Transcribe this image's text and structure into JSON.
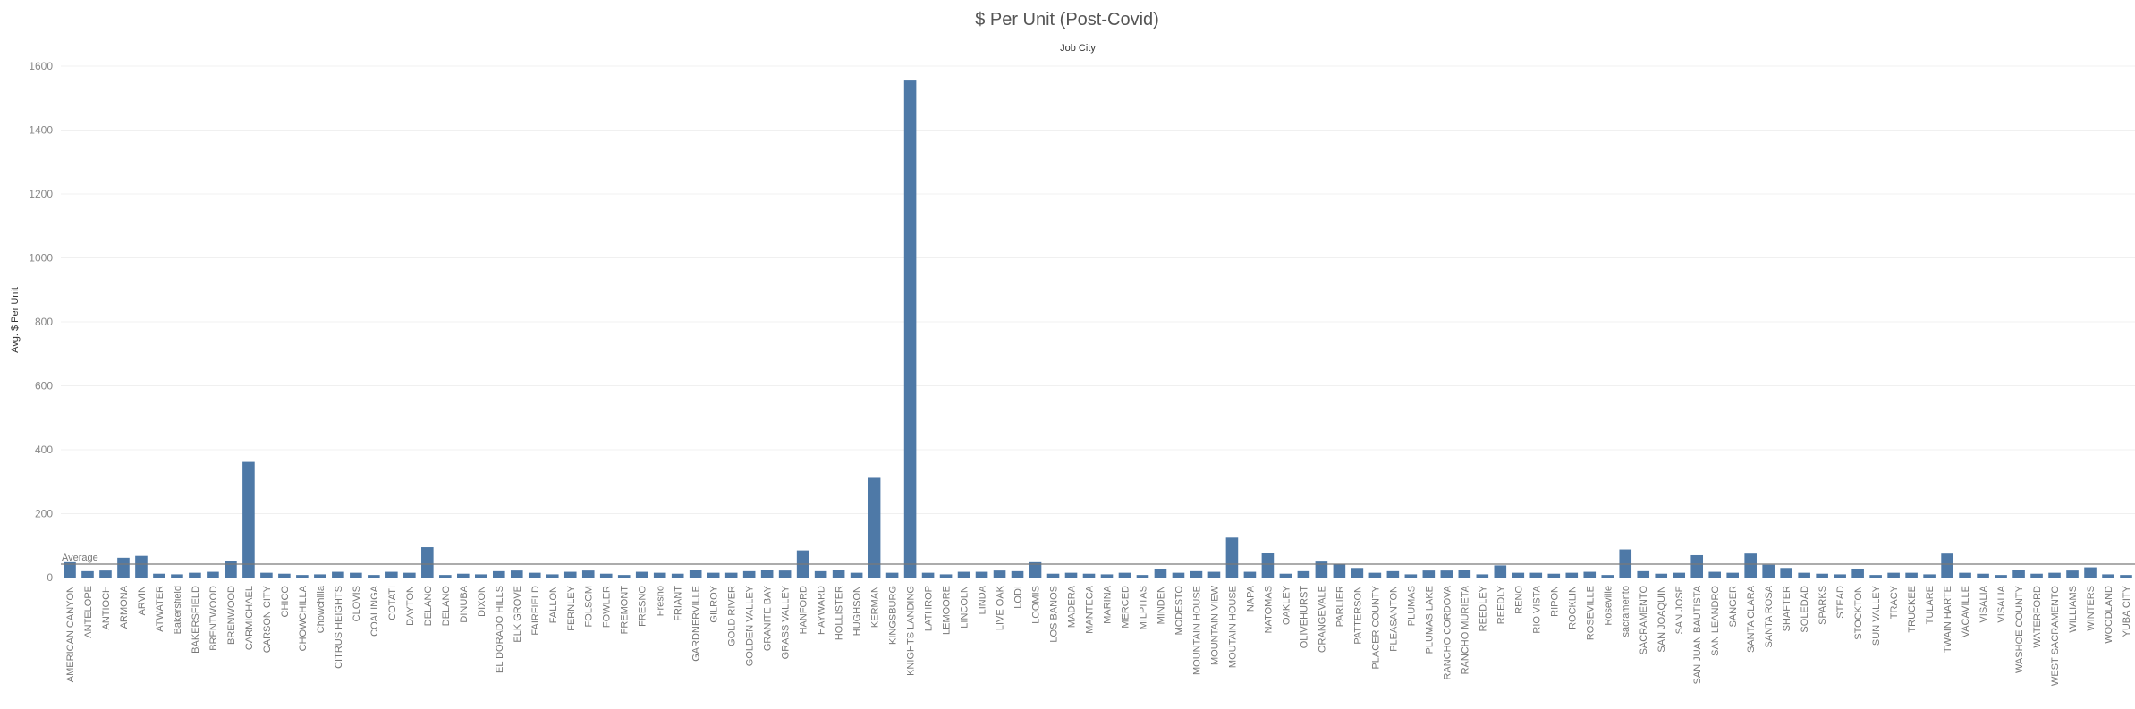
{
  "chart_data": {
    "type": "bar",
    "title": "$ Per Unit (Post-Covid)",
    "column_header": "Job City",
    "ylabel": "Avg. $ Per Unit",
    "ylim": [
      0,
      1600
    ],
    "yticks": [
      0,
      200,
      400,
      600,
      800,
      1000,
      1200,
      1400,
      1600
    ],
    "reference_line": {
      "label": "Average",
      "value": 42
    },
    "grid": true,
    "bar_color": "#4e79a7",
    "categories": [
      "AMERICAN CANYON",
      "ANTELOPE",
      "ANTIOCH",
      "ARMONA",
      "ARVIN",
      "ATWATER",
      "Bakersfield",
      "BAKERSFIELD",
      "BRENTWOOD",
      "BRENWOOD",
      "CARMICHAEL",
      "CARSON CITY",
      "CHICO",
      "CHOWCHILLA",
      "Chowchilla",
      "CITRUS HEIGHTS",
      "CLOVIS",
      "COALINGA",
      "COTATI",
      "DAYTON",
      "DELANO",
      "DELANO",
      "DINUBA",
      "DIXON",
      "EL DORADO HILLS",
      "ELK GROVE",
      "FAIRFIELD",
      "FALLON",
      "FERNLEY",
      "FOLSOM",
      "FOWLER",
      "FREMONT",
      "FRESNO",
      "Fresno",
      "FRIANT",
      "GARDNERVILLE",
      "GILROY",
      "GOLD RIVER",
      "GOLDEN VALLEY",
      "GRANITE BAY",
      "GRASS VALLEY",
      "HANFORD",
      "HAYWARD",
      "HOLLISTER",
      "HUGHSON",
      "KERMAN",
      "KINGSBURG",
      "KNIGHTS LANDING",
      "LATHROP",
      "LEMOORE",
      "LINCOLN",
      "LINDA",
      "LIVE OAK",
      "LODI",
      "LOOMIS",
      "LOS BANOS",
      "MADERA",
      "MANTECA",
      "MARINA",
      "MERCED",
      "MILPITAS",
      "MINDEN",
      "MODESTO",
      "MOUNTAIN HOUSE",
      "MOUNTAIN VIEW",
      "MOUTAIN HOUSE",
      "NAPA",
      "NATOMAS",
      "OAKLEY",
      "OLIVEHURST",
      "ORANGEVALE",
      "PARLIER",
      "PATTERSON",
      "PLACER COUNTY",
      "PLEASANTON",
      "PLUMAS",
      "PLUMAS LAKE",
      "RANCHO CORDOVA",
      "RANCHO MURIETA",
      "REEDLEY",
      "REEDLY",
      "RENO",
      "RIO VISTA",
      "RIPON",
      "ROCKLIN",
      "ROSEVILLE",
      "Roseville",
      "sacramento",
      "SACRAMENTO",
      "SAN JOAQUIN",
      "SAN JOSE",
      "SAN JUAN BAUTISTA",
      "SAN LEANDRO",
      "SANGER",
      "SANTA CLARA",
      "SANTA ROSA",
      "SHAFTER",
      "SOLEDAD",
      "SPARKS",
      "STEAD",
      "STOCKTON",
      "SUN VALLEY",
      "TRACY",
      "TRUCKEE",
      "TULARE",
      "TWAIN HARTE",
      "VACAVILLE",
      "VISALIA",
      "VISALIA",
      "WASHOE COUNTY",
      "WATERFORD",
      "WEST SACRAMENTO",
      "WILLIAMS",
      "WINTERS",
      "WOODLAND",
      "YUBA CITY"
    ],
    "values": [
      48,
      20,
      22,
      62,
      68,
      12,
      10,
      15,
      18,
      52,
      362,
      15,
      12,
      8,
      10,
      18,
      15,
      8,
      18,
      15,
      95,
      8,
      12,
      10,
      20,
      22,
      15,
      10,
      18,
      22,
      12,
      8,
      18,
      15,
      12,
      25,
      15,
      15,
      20,
      25,
      22,
      85,
      20,
      25,
      15,
      312,
      15,
      1555,
      15,
      10,
      18,
      18,
      22,
      20,
      48,
      12,
      15,
      12,
      10,
      15,
      8,
      28,
      15,
      20,
      18,
      125,
      18,
      78,
      12,
      20,
      50,
      42,
      30,
      15,
      20,
      10,
      22,
      22,
      25,
      10,
      38,
      15,
      15,
      12,
      15,
      18,
      8,
      88,
      20,
      12,
      15,
      70,
      18,
      15,
      75,
      40,
      30,
      15,
      12,
      10,
      28,
      8,
      15,
      15,
      10,
      75,
      15,
      12,
      8,
      25,
      12,
      15,
      22,
      32,
      10,
      8
    ]
  }
}
